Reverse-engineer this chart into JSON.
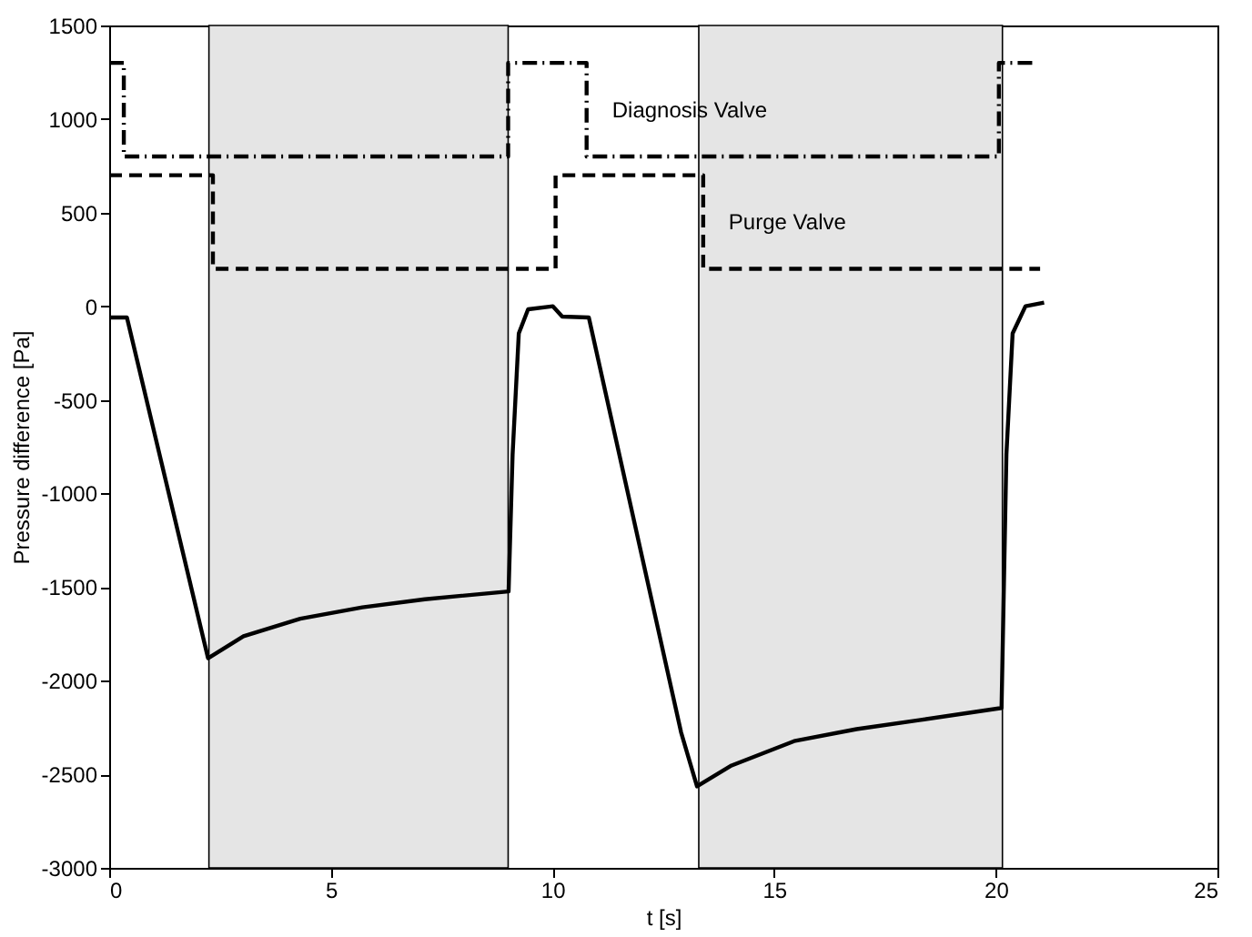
{
  "chart_data": {
    "type": "line",
    "xlabel": "t [s]",
    "ylabel": "Pressure difference [Pa]",
    "xlim": [
      0,
      25
    ],
    "xticks": [
      0,
      5,
      10,
      15,
      20,
      25
    ],
    "ylim": [
      -3000,
      1500
    ],
    "yticks": [
      -3000,
      -2500,
      -2000,
      -1500,
      -1000,
      -500,
      0,
      500,
      1000,
      1500
    ],
    "bands": [
      {
        "axis": "x",
        "from": 2.25,
        "to": 9.0,
        "color": "#e5e5e5"
      },
      {
        "axis": "x",
        "from": 13.3,
        "to": 20.15,
        "color": "#e5e5e5"
      }
    ],
    "series": [
      {
        "color": "#000000",
        "line_style": "solid",
        "x": [
          0,
          0.4,
          2.23,
          3.03,
          4.31,
          5.71,
          7.12,
          9.01,
          9.1,
          9.24,
          9.45,
          10.01,
          10.22,
          10.82,
          12.9,
          13.26,
          14.04,
          15.45,
          16.86,
          18.27,
          20.13,
          20.24,
          20.38,
          20.67,
          21.09
        ],
        "values": [
          -60,
          -60,
          -1880,
          -1763,
          -1669,
          -1608,
          -1565,
          -1523,
          -793,
          -145,
          -16,
          0,
          -55,
          -60,
          -2275,
          -2565,
          -2453,
          -2323,
          -2259,
          -2211,
          -2146,
          -791,
          -145,
          0,
          20
        ]
      },
      {
        "type": "step",
        "name": "Diagnosis Valve",
        "color": "#000000",
        "line_style": "dashdot",
        "x": [
          0,
          0.33,
          9.0,
          10.77,
          20.07,
          20.9
        ],
        "values": [
          1300,
          800,
          1300,
          800,
          1300,
          1300
        ]
      },
      {
        "type": "step",
        "name": "Purge Valve",
        "color": "#000000",
        "line_style": "dashed",
        "x": [
          0,
          2.34,
          10.07,
          13.4,
          21.0
        ],
        "values": [
          700,
          200,
          700,
          200,
          200
        ]
      }
    ]
  }
}
